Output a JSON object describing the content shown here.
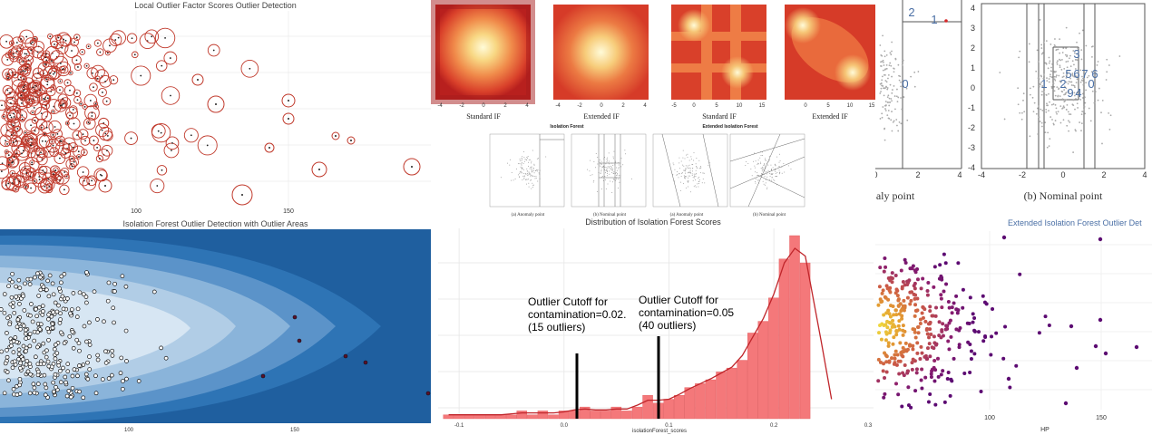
{
  "panels": {
    "lof": {
      "title": "Local Outlier Factor Scores Outlier Detection",
      "xticks": [
        "100",
        "150"
      ]
    },
    "iforest_maps": {
      "labels": [
        "Standard IF",
        "Extended IF",
        "Standard IF",
        "Extended IF"
      ],
      "small_titles": [
        "Isolation Forest",
        "Extended Isolation Forest"
      ],
      "small_captions": [
        "(a) Anomaly point",
        "(b) Nominal point",
        "(a) Anomaly point",
        "(b) Nominal point"
      ],
      "axis_ticks_a": [
        "-4",
        "-2",
        "0",
        "2",
        "4"
      ],
      "axis_ticks_b": [
        "-5",
        "0",
        "5",
        "10",
        "15"
      ]
    },
    "partition_zoom": {
      "xticks_left": [
        "0",
        "2",
        "4"
      ],
      "xticks_right": [
        "-4",
        "-2",
        "0",
        "2",
        "4"
      ],
      "yticks": [
        "4",
        "3",
        "2",
        "1",
        "0",
        "-1",
        "-2",
        "-3",
        "-4"
      ],
      "caption_left": "aly point",
      "caption_right": "(b) Nominal point",
      "labels_left": [
        "2",
        "1",
        "0"
      ],
      "labels_right": [
        "3",
        "1",
        "2",
        "5",
        "6",
        "7",
        "6",
        "0",
        "9",
        "4"
      ]
    },
    "iso_areas": {
      "title": "Isolation Forest Outlier Detection with Outlier Areas",
      "xticks": [
        "100",
        "150"
      ]
    },
    "histogram": {
      "title": "Distribution of Isolation Forest Scores",
      "xlabel": "isolationForest_scores",
      "xticks": [
        "-0.1",
        "0.0",
        "0.1",
        "0.2",
        "0.3"
      ],
      "annotation1": [
        "Outlier Cutoff for",
        "contamination=0.02.",
        "(15 outliers)"
      ],
      "annotation2": [
        "Outlier Cutoff for",
        "contamination=0.05",
        "(40 outliers)"
      ]
    },
    "eif_scatter": {
      "title": "Extended Isolation Forest Outlier Det",
      "xlabel": "HP",
      "xticks": [
        "100",
        "150"
      ]
    }
  },
  "colors": {
    "lof_circle": "#c0392b",
    "hist_bar": "#f4787a",
    "hist_curve": "#c0262b",
    "cutoff_line": "#000000",
    "area_dark": "#1f5f9f",
    "area_light": "#d7e6f3",
    "eif_low": "#f0e442",
    "eif_high": "#5c0a72"
  },
  "chart_data": [
    {
      "type": "scatter",
      "title": "Local Outlier Factor Scores Outlier Detection",
      "xlim": [
        20,
        185
      ],
      "ylim": [
        0,
        1
      ],
      "grid": true,
      "note": "points drawn as dots with circle radius proportional to LOF score"
    },
    {
      "type": "heatmap",
      "labels": [
        "Standard IF",
        "Extended IF",
        "Standard IF",
        "Extended IF"
      ]
    },
    {
      "type": "scatter",
      "title": "Isolation Forest Outlier Detection with Outlier Areas",
      "xlim": [
        20,
        185
      ],
      "grid": false
    },
    {
      "type": "bar",
      "title": "Distribution of Isolation Forest Scores",
      "xlabel": "isolationForest_scores",
      "xlim": [
        -0.12,
        0.3
      ],
      "bin_centers": [
        -0.11,
        -0.1,
        -0.09,
        -0.08,
        -0.07,
        -0.06,
        -0.05,
        -0.04,
        -0.03,
        -0.02,
        -0.01,
        0.0,
        0.01,
        0.02,
        0.03,
        0.04,
        0.05,
        0.06,
        0.07,
        0.08,
        0.09,
        0.1,
        0.11,
        0.12,
        0.13,
        0.14,
        0.15,
        0.16,
        0.17,
        0.18,
        0.19,
        0.2,
        0.21,
        0.22,
        0.23
      ],
      "counts": [
        1,
        1,
        1,
        1,
        1,
        1,
        1,
        2,
        1,
        2,
        1,
        2,
        2,
        3,
        2,
        2,
        3,
        2,
        3,
        6,
        4,
        5,
        6,
        8,
        9,
        10,
        12,
        13,
        15,
        22,
        25,
        31,
        41,
        47,
        40
      ],
      "cutoffs": [
        {
          "x": 0.0,
          "label": "contamination=0.02."
        },
        {
          "x": 0.07,
          "label": "contamination=0.05"
        }
      ]
    },
    {
      "type": "scatter",
      "title": "Extended Isolation Forest Outlier Det",
      "xlabel": "HP",
      "xlim": [
        25,
        175
      ]
    }
  ]
}
